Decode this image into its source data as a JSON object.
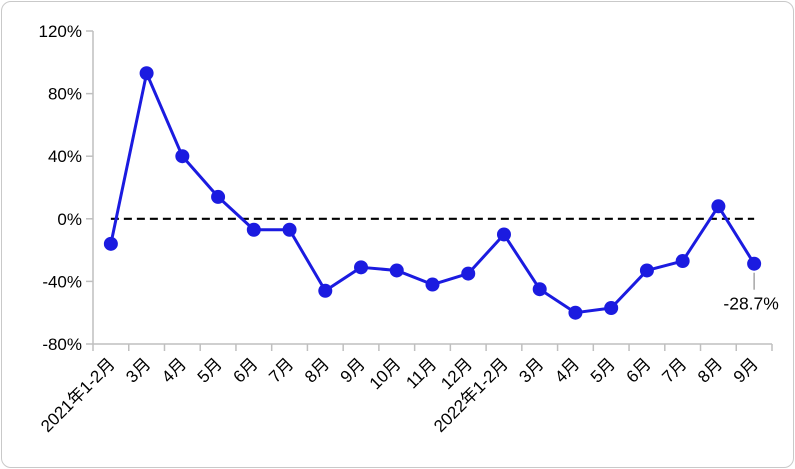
{
  "chart_data": {
    "type": "line",
    "title": "",
    "xlabel": "",
    "ylabel": "",
    "categories": [
      "2021年1-2月",
      "3月",
      "4月",
      "5月",
      "6月",
      "7月",
      "8月",
      "9月",
      "10月",
      "11月",
      "12月",
      "2022年1-2月",
      "3月",
      "4月",
      "5月",
      "6月",
      "7月",
      "8月",
      "9月"
    ],
    "values": [
      -16,
      93,
      40,
      14,
      -7,
      -7,
      -46,
      -31,
      -33,
      -42,
      -35,
      -10,
      -45,
      -60,
      -57,
      -33,
      -27,
      8,
      -28.7
    ],
    "ylim": [
      -80,
      120
    ],
    "yticks": [
      120,
      80,
      40,
      0,
      -40,
      -80
    ],
    "ytick_labels": [
      "120%",
      "80%",
      "40%",
      "0%",
      "-40%",
      "-80%"
    ],
    "grid": false,
    "legend_position": "none",
    "zero_line": {
      "style": "dashed",
      "color": "#000000"
    },
    "annotation": {
      "text": "-28.7%",
      "point_index": 18
    },
    "colors": {
      "series": "#1b1be0",
      "axis": "#bfbfbf",
      "text": "#000000",
      "leader": "#a6a6a6",
      "frame_border": "#c9c9c9"
    }
  }
}
